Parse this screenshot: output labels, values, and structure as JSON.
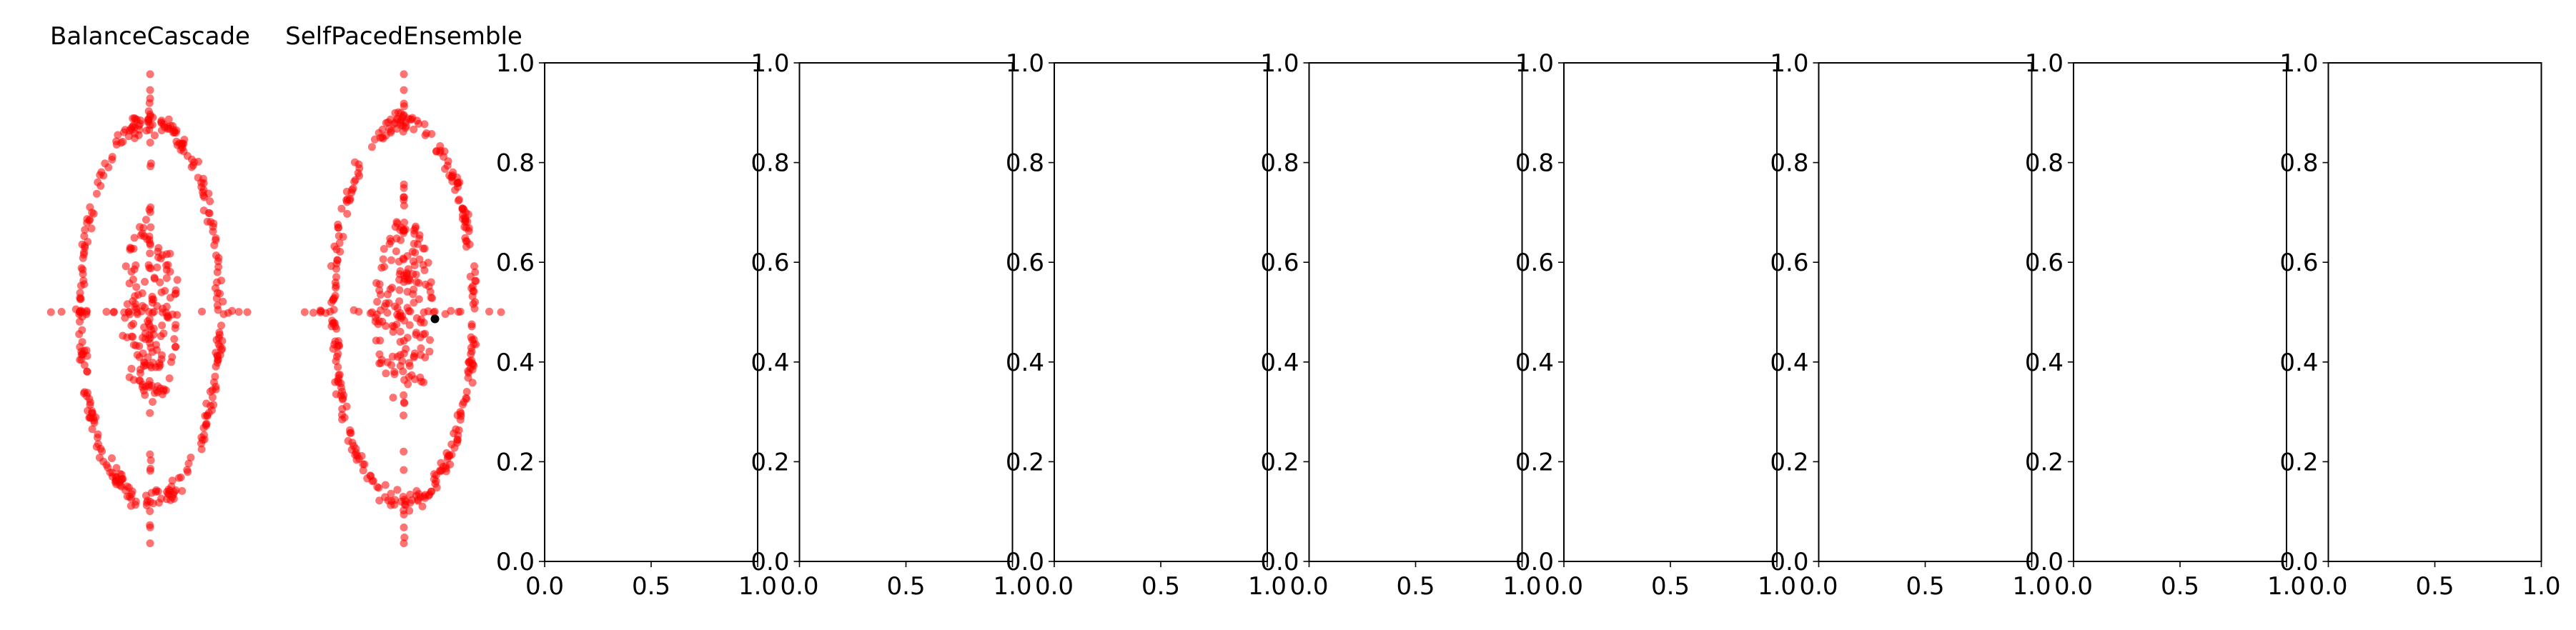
{
  "figure": {
    "subplot_titles": [
      "BalanceCascade",
      "SelfPacedEnsemble"
    ]
  },
  "chart_data": [
    {
      "type": "scatter",
      "title": "BalanceCascade",
      "axes_visible": false,
      "xlim": [
        -1.25,
        1.25
      ],
      "ylim": [
        -1.1,
        1.1
      ],
      "series": [
        {
          "color": "#ff0000",
          "opacity": 0.55,
          "shape": "ellipse-ring-and-inner-cross",
          "outer_ring": {
            "rx": 0.92,
            "ry": 0.72,
            "jitter": 0.08,
            "count": 300
          },
          "inner_cluster": {
            "rx": 0.28,
            "ry": 0.33,
            "count": 150
          },
          "horizontal_axis": {
            "x_range": [
              -1.0,
              1.0
            ],
            "y": 0.0,
            "count": 22
          },
          "vertical_axis": {
            "x": 0.0,
            "y_range": [
              -1.0,
              1.0
            ],
            "count": 30
          },
          "extreme_points": [
            [
              0.0,
              1.05
            ],
            [
              0.0,
              -1.02
            ],
            [
              0.0,
              0.98
            ],
            [
              0.0,
              -0.95
            ],
            [
              -1.02,
              0.0
            ],
            [
              1.0,
              0.0
            ]
          ]
        }
      ]
    },
    {
      "type": "scatter",
      "title": "SelfPacedEnsemble",
      "axes_visible": false,
      "xlim": [
        -1.25,
        1.25
      ],
      "ylim": [
        -1.1,
        1.1
      ],
      "series": [
        {
          "color": "#ff0000",
          "opacity": 0.55,
          "shape": "ellipse-ring-and-inner-cross",
          "outer_ring": {
            "rx": 0.92,
            "ry": 0.72,
            "jitter": 0.08,
            "count": 300
          },
          "inner_cluster": {
            "rx": 0.28,
            "ry": 0.33,
            "count": 150
          },
          "horizontal_axis": {
            "x_range": [
              -1.0,
              1.0
            ],
            "y": 0.0,
            "count": 22
          },
          "vertical_axis": {
            "x": 0.0,
            "y_range": [
              -1.0,
              1.0
            ],
            "count": 30
          },
          "extreme_points": [
            [
              0.0,
              1.05
            ],
            [
              0.0,
              -1.02
            ],
            [
              0.0,
              0.98
            ],
            [
              0.0,
              -0.95
            ],
            [
              -1.02,
              0.0
            ],
            [
              1.0,
              0.0
            ]
          ]
        },
        {
          "color": "#000000",
          "opacity": 1.0,
          "points": [
            [
              0.32,
              -0.03
            ]
          ]
        }
      ]
    },
    {
      "type": "empty",
      "xlim": [
        0.0,
        1.0
      ],
      "ylim": [
        0.0,
        1.0
      ],
      "xticks": [
        "0.0",
        "0.5",
        "1.0"
      ],
      "yticks": [
        "0.0",
        "0.2",
        "0.4",
        "0.6",
        "0.8",
        "1.0"
      ]
    },
    {
      "type": "empty",
      "xlim": [
        0.0,
        1.0
      ],
      "ylim": [
        0.0,
        1.0
      ],
      "xticks": [
        "0.0",
        "0.5",
        "1.0"
      ],
      "yticks": [
        "0.0",
        "0.2",
        "0.4",
        "0.6",
        "0.8",
        "1.0"
      ]
    },
    {
      "type": "empty",
      "xlim": [
        0.0,
        1.0
      ],
      "ylim": [
        0.0,
        1.0
      ],
      "xticks": [
        "0.0",
        "0.5",
        "1.0"
      ],
      "yticks": [
        "0.0",
        "0.2",
        "0.4",
        "0.6",
        "0.8",
        "1.0"
      ]
    },
    {
      "type": "empty",
      "xlim": [
        0.0,
        1.0
      ],
      "ylim": [
        0.0,
        1.0
      ],
      "xticks": [
        "0.0",
        "0.5",
        "1.0"
      ],
      "yticks": [
        "0.0",
        "0.2",
        "0.4",
        "0.6",
        "0.8",
        "1.0"
      ]
    },
    {
      "type": "empty",
      "xlim": [
        0.0,
        1.0
      ],
      "ylim": [
        0.0,
        1.0
      ],
      "xticks": [
        "0.0",
        "0.5",
        "1.0"
      ],
      "yticks": [
        "0.0",
        "0.2",
        "0.4",
        "0.6",
        "0.8",
        "1.0"
      ]
    },
    {
      "type": "empty",
      "xlim": [
        0.0,
        1.0
      ],
      "ylim": [
        0.0,
        1.0
      ],
      "xticks": [
        "0.0",
        "0.5",
        "1.0"
      ],
      "yticks": [
        "0.0",
        "0.2",
        "0.4",
        "0.6",
        "0.8",
        "1.0"
      ]
    },
    {
      "type": "empty",
      "xlim": [
        0.0,
        1.0
      ],
      "ylim": [
        0.0,
        1.0
      ],
      "xticks": [
        "0.0",
        "0.5",
        "1.0"
      ],
      "yticks": [
        "0.0",
        "0.2",
        "0.4",
        "0.6",
        "0.8",
        "1.0"
      ]
    },
    {
      "type": "empty",
      "xlim": [
        0.0,
        1.0
      ],
      "ylim": [
        0.0,
        1.0
      ],
      "xticks": [
        "0.0",
        "0.5",
        "1.0"
      ],
      "yticks": [
        "0.0",
        "0.2",
        "0.4",
        "0.6",
        "0.8",
        "1.0"
      ]
    }
  ]
}
